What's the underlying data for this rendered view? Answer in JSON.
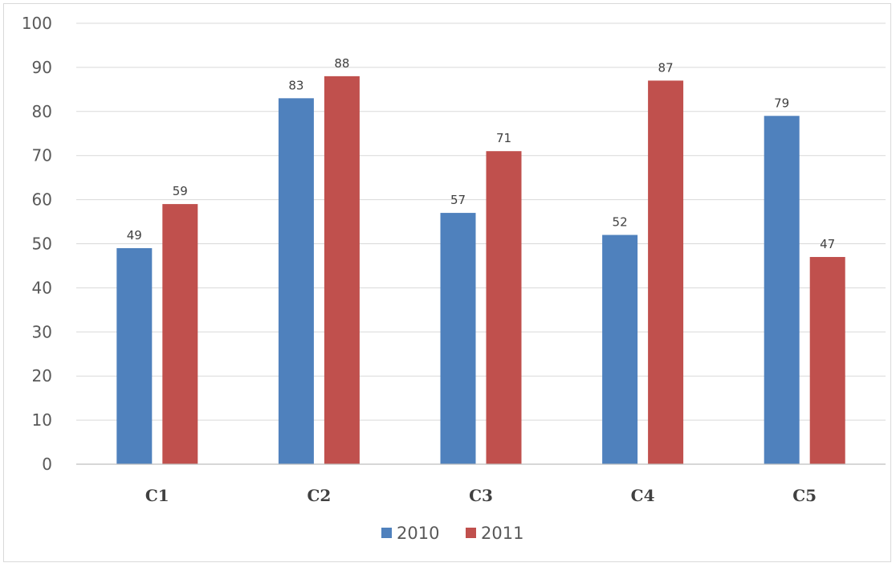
{
  "chart_data": {
    "type": "bar",
    "categories": [
      "C1",
      "C2",
      "C3",
      "C4",
      "C5"
    ],
    "series": [
      {
        "name": "2010",
        "values": [
          49,
          83,
          57,
          52,
          79
        ],
        "color": "#4f81bd"
      },
      {
        "name": "2011",
        "values": [
          59,
          88,
          71,
          87,
          47
        ],
        "color": "#c0504d"
      }
    ],
    "title": "",
    "xlabel": "",
    "ylabel": "",
    "ylim": [
      0,
      100
    ],
    "yticks": [
      0,
      10,
      20,
      30,
      40,
      50,
      60,
      70,
      80,
      90,
      100
    ],
    "grid": true,
    "legend": "bottom-center",
    "data_labels": true
  }
}
